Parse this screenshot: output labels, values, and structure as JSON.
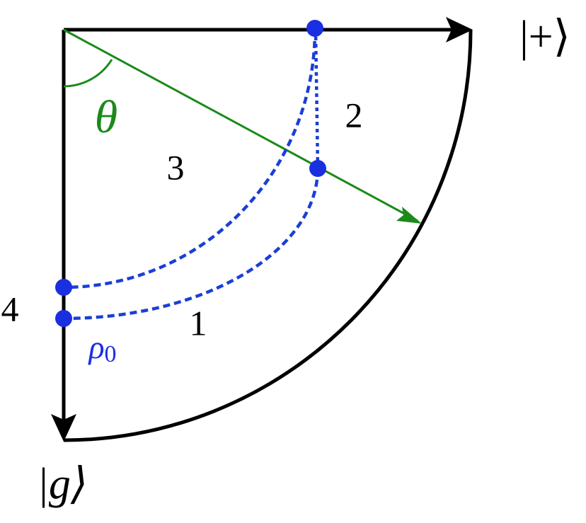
{
  "axes": {
    "plus_label": "|+⟩",
    "g_label": "|g⟩"
  },
  "angle_label": "θ",
  "state": {
    "symbol": "ρ",
    "subscript": "0"
  },
  "regions": [
    "1",
    "2",
    "3",
    "4"
  ]
}
